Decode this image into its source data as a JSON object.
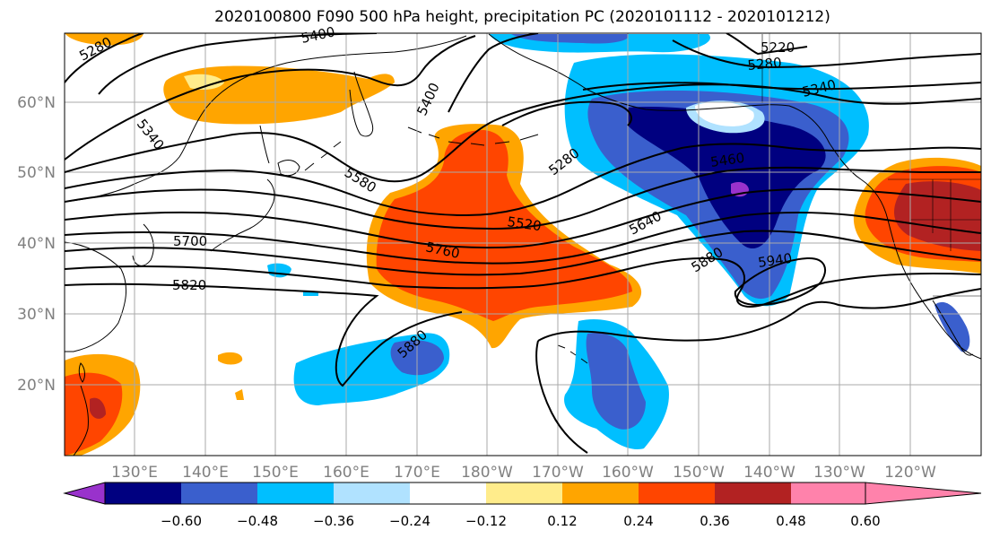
{
  "title": "2020100800 F090 500 hPa height, precipitation PC (2020101112 - 2020101212)",
  "latitude_labels": [
    "60°N",
    "50°N",
    "40°N",
    "30°N",
    "20°N"
  ],
  "longitude_labels": [
    "130°E",
    "140°E",
    "150°E",
    "160°E",
    "170°E",
    "180°W",
    "170°W",
    "160°W",
    "150°W",
    "140°W",
    "130°W",
    "120°W"
  ],
  "contour_labels": [
    "5280",
    "5400",
    "5220",
    "5280",
    "5340",
    "5340",
    "5400",
    "5280",
    "5460",
    "5580",
    "5520",
    "5640",
    "5700",
    "5760",
    "5880",
    "5940",
    "5820",
    "5880"
  ],
  "colorbar": {
    "tick_labels": [
      "−0.60",
      "−0.48",
      "−0.36",
      "−0.24",
      "−0.12",
      "0.12",
      "0.24",
      "0.36",
      "0.48",
      "0.60"
    ],
    "colors": [
      "#9932cc",
      "#000080",
      "#3a5fcd",
      "#00bfff",
      "#b0e2ff",
      "#ffffff",
      "#ffec8b",
      "#ffa500",
      "#ff4500",
      "#b22222",
      "#ff82ab"
    ]
  },
  "colors": {
    "grid": "#aaaaaa",
    "axis_label": "#808080",
    "contour": "#000000"
  }
}
